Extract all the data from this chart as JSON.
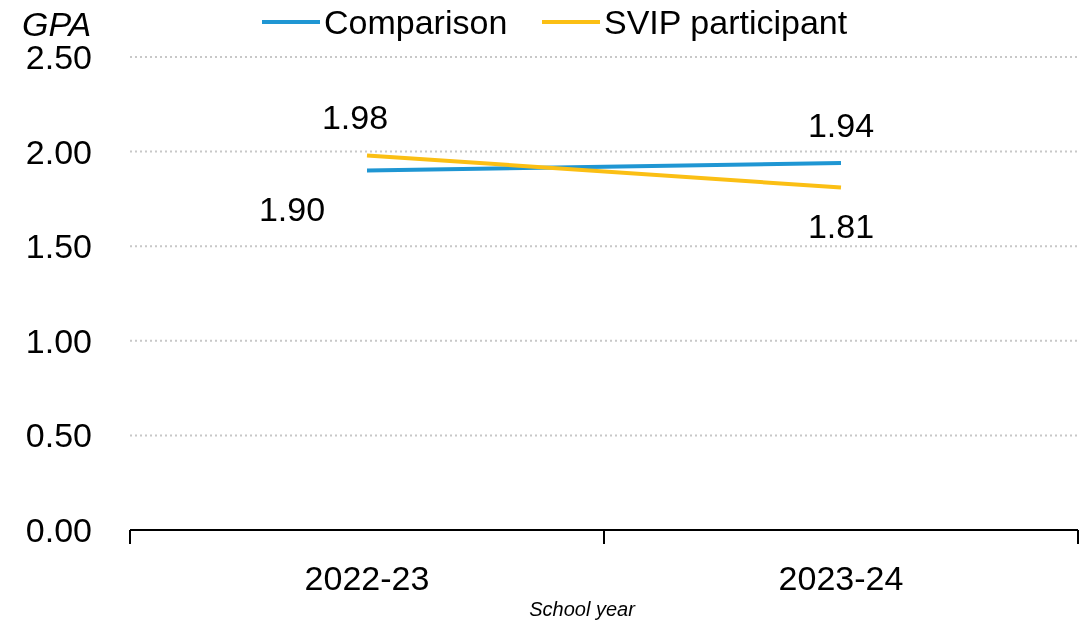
{
  "chart_data": {
    "type": "line",
    "ylabel": "GPA",
    "xlabel": "School year",
    "categories": [
      "2022-23",
      "2023-24"
    ],
    "series": [
      {
        "name": "Comparison",
        "color": "#1f96d3",
        "values": [
          1.9,
          1.94
        ],
        "value_labels": [
          "1.90",
          "1.94"
        ]
      },
      {
        "name": "SVIP participant",
        "color": "#fbbf14",
        "values": [
          1.98,
          1.81
        ],
        "value_labels": [
          "1.98",
          "1.81"
        ]
      }
    ],
    "ylim": [
      0,
      2.5
    ],
    "yticks": [
      {
        "value": 0,
        "label": "0.00"
      },
      {
        "value": 0.5,
        "label": "0.50"
      },
      {
        "value": 1,
        "label": "1.00"
      },
      {
        "value": 1.5,
        "label": "1.50"
      },
      {
        "value": 2,
        "label": "2.00"
      },
      {
        "value": 2.5,
        "label": "2.50"
      }
    ],
    "grid": "y",
    "legend": "top",
    "marker": "none",
    "line_style": "solid"
  }
}
